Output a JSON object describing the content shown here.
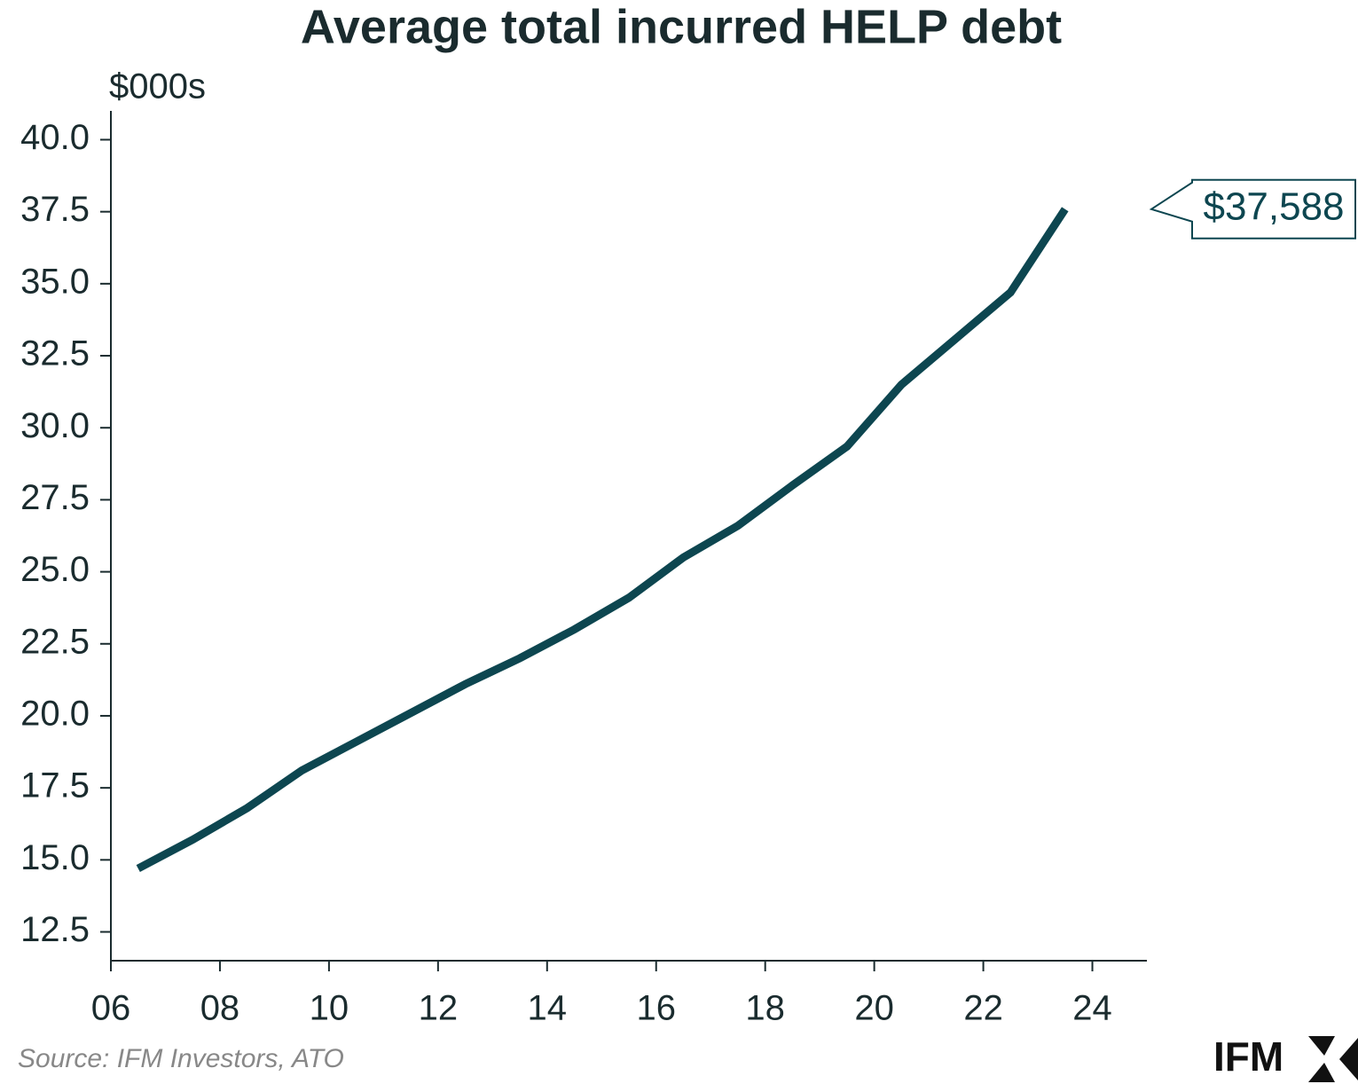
{
  "chart_data": {
    "type": "line",
    "title": "Average total incurred HELP debt",
    "y_label": "$000s",
    "source": "Source: IFM Investors, ATO",
    "logo": "IFM",
    "x": [
      6.5,
      7.5,
      8.5,
      9.5,
      10.5,
      11.5,
      12.5,
      13.5,
      14.5,
      15.5,
      16.5,
      17.5,
      18.5,
      19.5,
      20.5,
      21.5,
      22.5,
      23.5
    ],
    "values": [
      14.7,
      15.7,
      16.8,
      18.1,
      19.1,
      20.1,
      21.1,
      22.0,
      23.0,
      24.1,
      25.5,
      26.6,
      28.0,
      29.35,
      31.5,
      33.1,
      34.7,
      37.588
    ],
    "value_labels": [
      null,
      null,
      null,
      null,
      null,
      null,
      null,
      null,
      null,
      null,
      null,
      null,
      null,
      null,
      null,
      null,
      null,
      "$37,588"
    ],
    "color": "#0d4650",
    "xlim": [
      6,
      25
    ],
    "xticks": [
      {
        "value": 6,
        "label": "06"
      },
      {
        "value": 8,
        "label": "08"
      },
      10,
      12,
      14,
      16,
      18,
      20,
      22,
      24
    ],
    "ylim": [
      11.5,
      41.0
    ],
    "yticks": [
      {
        "value": 12.5,
        "label": "12.5"
      },
      {
        "value": 15,
        "label": "15.0"
      },
      {
        "value": 17.5,
        "label": "17.5"
      },
      {
        "value": 20,
        "label": "20.0"
      },
      {
        "value": 22.5,
        "label": "22.5"
      },
      {
        "value": 25,
        "label": "25.0"
      },
      {
        "value": 27.5,
        "label": "27.5"
      },
      {
        "value": 30,
        "label": "30.0"
      },
      {
        "value": 32.5,
        "label": "32.5"
      },
      {
        "value": 35,
        "label": "35.0"
      },
      {
        "value": 37.5,
        "label": "37.5"
      },
      {
        "value": 40,
        "label": "40.0"
      }
    ],
    "grid": false
  }
}
